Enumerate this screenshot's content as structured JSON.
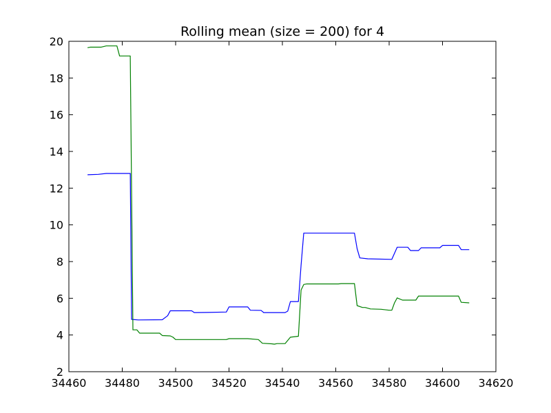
{
  "chart_data": {
    "type": "line",
    "title": "Rolling mean (size = 200) for 4",
    "xlabel": "",
    "ylabel": "",
    "xlim": [
      34460,
      34620
    ],
    "ylim": [
      2,
      20
    ],
    "xticks": [
      34460,
      34480,
      34500,
      34520,
      34540,
      34560,
      34580,
      34600,
      34620
    ],
    "yticks": [
      2,
      4,
      6,
      8,
      10,
      12,
      14,
      16,
      18,
      20
    ],
    "grid": false,
    "series": [
      {
        "color": "#0000ff",
        "points": [
          [
            34467,
            12.73
          ],
          [
            34471,
            12.75
          ],
          [
            34474,
            12.8
          ],
          [
            34483,
            12.8
          ],
          [
            34483.5,
            4.85
          ],
          [
            34486,
            4.82
          ],
          [
            34495,
            4.83
          ],
          [
            34497,
            5.05
          ],
          [
            34498,
            5.32
          ],
          [
            34506,
            5.32
          ],
          [
            34507,
            5.22
          ],
          [
            34512,
            5.23
          ],
          [
            34519,
            5.25
          ],
          [
            34520,
            5.53
          ],
          [
            34527,
            5.53
          ],
          [
            34528,
            5.35
          ],
          [
            34532,
            5.34
          ],
          [
            34533,
            5.22
          ],
          [
            34541,
            5.22
          ],
          [
            34542,
            5.3
          ],
          [
            34543,
            5.82
          ],
          [
            34546,
            5.82
          ],
          [
            34547,
            7.8
          ],
          [
            34548,
            9.55
          ],
          [
            34567,
            9.55
          ],
          [
            34568,
            8.7
          ],
          [
            34569,
            8.2
          ],
          [
            34572,
            8.15
          ],
          [
            34581,
            8.12
          ],
          [
            34582,
            8.45
          ],
          [
            34583,
            8.78
          ],
          [
            34587,
            8.78
          ],
          [
            34588,
            8.6
          ],
          [
            34591,
            8.6
          ],
          [
            34592,
            8.75
          ],
          [
            34599,
            8.75
          ],
          [
            34600,
            8.88
          ],
          [
            34606,
            8.88
          ],
          [
            34607,
            8.65
          ],
          [
            34610,
            8.65
          ]
        ]
      },
      {
        "color": "#008000",
        "points": [
          [
            34467,
            19.65
          ],
          [
            34468,
            19.68
          ],
          [
            34472,
            19.68
          ],
          [
            34474,
            19.75
          ],
          [
            34478,
            19.75
          ],
          [
            34479,
            19.2
          ],
          [
            34483,
            19.2
          ],
          [
            34484,
            4.28
          ],
          [
            34485.5,
            4.28
          ],
          [
            34486.5,
            4.1
          ],
          [
            34494,
            4.1
          ],
          [
            34495,
            3.97
          ],
          [
            34498,
            3.95
          ],
          [
            34499,
            3.88
          ],
          [
            34500,
            3.75
          ],
          [
            34519,
            3.75
          ],
          [
            34520,
            3.8
          ],
          [
            34527,
            3.8
          ],
          [
            34531,
            3.75
          ],
          [
            34532.5,
            3.55
          ],
          [
            34536,
            3.52
          ],
          [
            34537,
            3.5
          ],
          [
            34538,
            3.53
          ],
          [
            34541,
            3.53
          ],
          [
            34543,
            3.88
          ],
          [
            34546,
            3.93
          ],
          [
            34547,
            6.45
          ],
          [
            34548,
            6.75
          ],
          [
            34549,
            6.78
          ],
          [
            34561,
            6.78
          ],
          [
            34562,
            6.8
          ],
          [
            34567,
            6.8
          ],
          [
            34568,
            5.6
          ],
          [
            34570,
            5.5
          ],
          [
            34571,
            5.5
          ],
          [
            34573,
            5.42
          ],
          [
            34577,
            5.4
          ],
          [
            34580,
            5.35
          ],
          [
            34581,
            5.35
          ],
          [
            34582,
            5.75
          ],
          [
            34583,
            6.02
          ],
          [
            34585,
            5.9
          ],
          [
            34590,
            5.9
          ],
          [
            34591,
            6.12
          ],
          [
            34606,
            6.12
          ],
          [
            34607,
            5.78
          ],
          [
            34610,
            5.75
          ]
        ]
      }
    ]
  }
}
